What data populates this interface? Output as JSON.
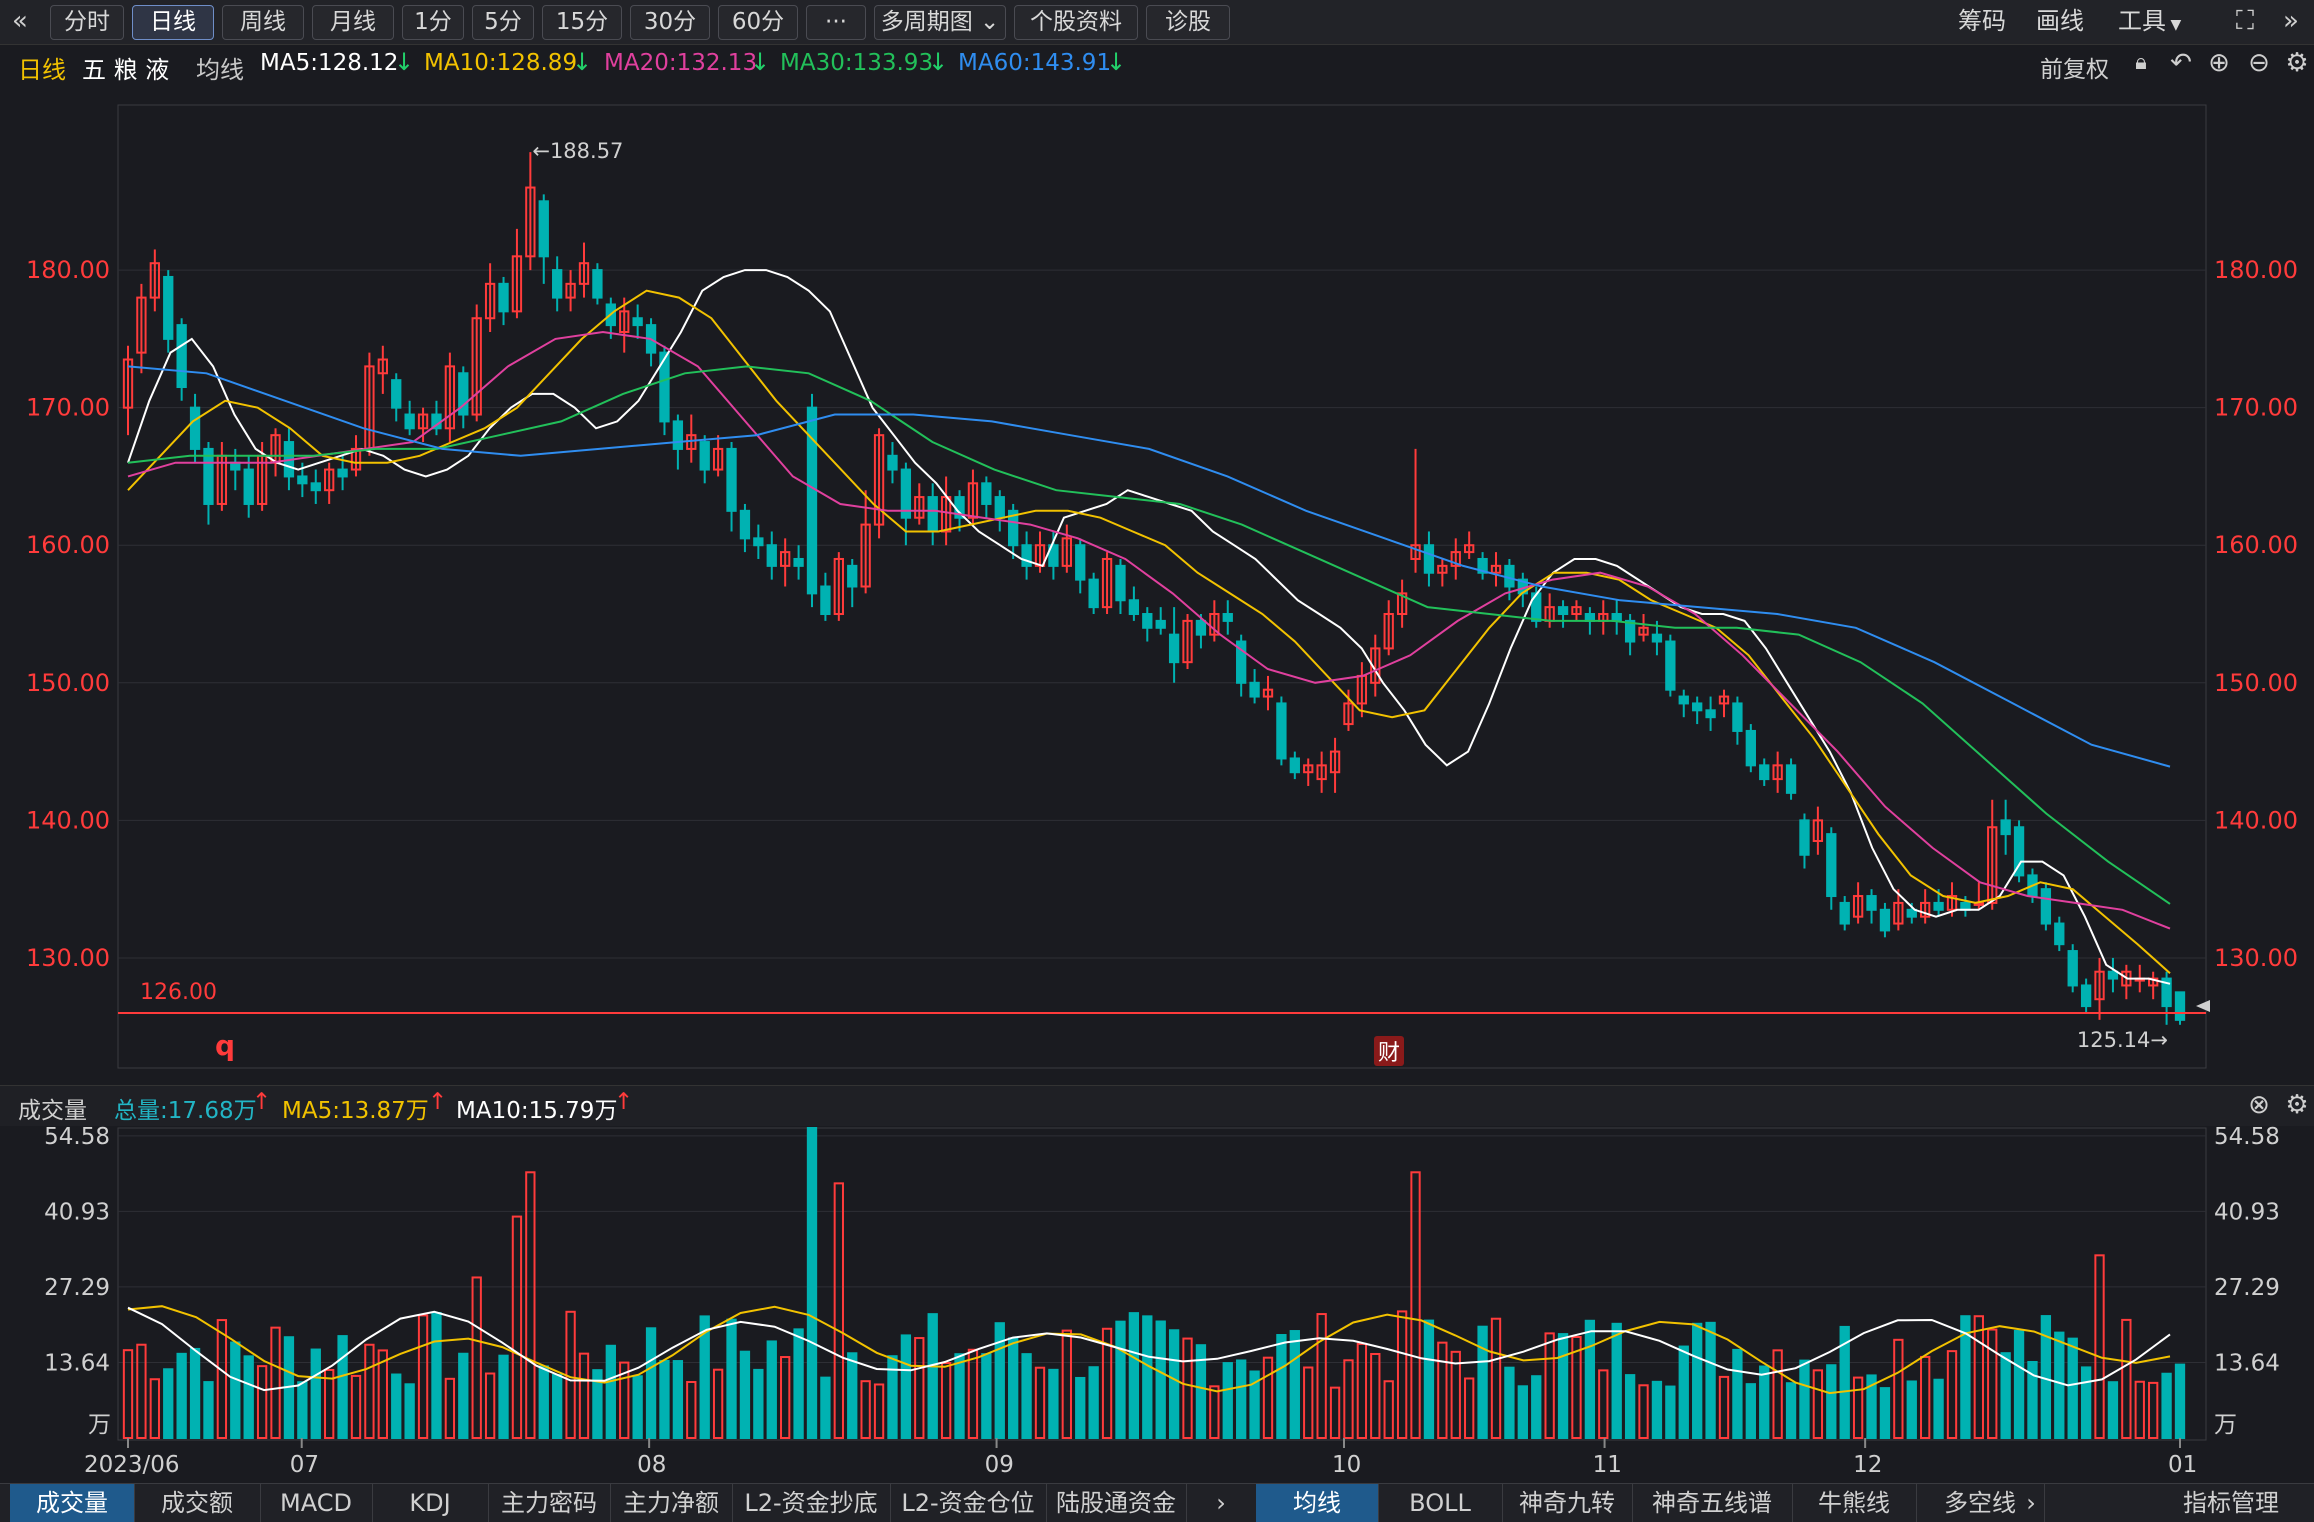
{
  "toolbar": {
    "back_icon": "double-chevron-left-icon",
    "tabs": [
      "分时",
      "日线",
      "周线",
      "月线",
      "1分",
      "5分",
      "15分",
      "30分",
      "60分",
      "···",
      "多周期图",
      "个股资料",
      "诊股"
    ],
    "active_tab": "日线",
    "right": [
      "筹码",
      "画线",
      "工具"
    ]
  },
  "info": {
    "period": "日线",
    "stock_name": "五 粮 液",
    "ma_label": "均线",
    "ma5": "MA5:128.12",
    "ma10": "MA10:128.89",
    "ma20": "MA20:132.13",
    "ma30": "MA30:133.93",
    "ma60": "MA60:143.91",
    "fuquan": "前复权"
  },
  "price_chart": {
    "y_ticks": [
      "180.00",
      "170.00",
      "160.00",
      "150.00",
      "140.00",
      "130.00"
    ],
    "high_label": "←188.57",
    "low_label": "125.14→",
    "hline_label": "126.00",
    "marker_q": "q",
    "marker_cai": "财"
  },
  "volume": {
    "title": "成交量",
    "total": "总量:17.68万",
    "ma5": "MA5:13.87万",
    "ma10": "MA10:15.79万",
    "y_ticks": [
      "54.58",
      "40.93",
      "27.29",
      "13.64"
    ],
    "unit": "万",
    "x_labels": [
      "2023/06",
      "07",
      "08",
      "09",
      "10",
      "11",
      "12",
      "01"
    ]
  },
  "bottom_tabs": [
    "成交量",
    "成交额",
    "MACD",
    "KDJ",
    "主力密码",
    "主力净额",
    "L2-资金抄底",
    "L2-资金仓位",
    "陆股通资金"
  ],
  "bottom_tabs_right": [
    "均线",
    "BOLL",
    "神奇九转",
    "神奇五线谱",
    "牛熊线",
    "多空线"
  ],
  "bottom_right_label": "指标管理",
  "colors": {
    "up": "#ff3b3b",
    "down": "#00b2b2",
    "ma5": "#ffffff",
    "ma10": "#f2c200",
    "ma20": "#e0409e",
    "ma30": "#22c05a",
    "ma60": "#2f8df0",
    "bg": "#1a1b20"
  },
  "chart_data": {
    "type": "candlestick",
    "title": "五粮液 日线",
    "x_label_months": [
      "2023/06",
      "07",
      "08",
      "09",
      "10",
      "11",
      "12",
      "01"
    ],
    "ylim": [
      122,
      192
    ],
    "high": 188.57,
    "low": 125.14,
    "support_line": 126.0,
    "candles": [
      [
        170.0,
        173.5,
        174.5,
        168.0
      ],
      [
        174.0,
        178.0,
        179.0,
        172.5
      ],
      [
        178.0,
        180.5,
        181.5,
        177.0
      ],
      [
        179.5,
        175.0,
        180.0,
        174.0
      ],
      [
        176.0,
        171.5,
        176.5,
        170.5
      ],
      [
        170.0,
        167.0,
        171.0,
        166.0
      ],
      [
        167.0,
        163.0,
        167.5,
        161.5
      ],
      [
        163.0,
        166.5,
        167.5,
        162.5
      ],
      [
        166.0,
        165.5,
        167.0,
        164.0
      ],
      [
        165.5,
        163.0,
        166.5,
        162.0
      ],
      [
        163.0,
        166.5,
        167.5,
        162.5
      ],
      [
        166.0,
        168.0,
        168.5,
        165.0
      ],
      [
        167.5,
        165.0,
        168.5,
        164.0
      ],
      [
        165.0,
        164.5,
        166.0,
        163.5
      ],
      [
        164.5,
        164.0,
        165.5,
        163.0
      ],
      [
        164.0,
        165.5,
        166.0,
        163.0
      ],
      [
        165.5,
        165.0,
        166.5,
        164.0
      ],
      [
        165.5,
        167.0,
        168.0,
        165.0
      ],
      [
        167.0,
        173.0,
        174.0,
        166.5
      ],
      [
        172.5,
        173.5,
        174.5,
        171.0
      ],
      [
        172.0,
        170.0,
        172.5,
        169.0
      ],
      [
        169.5,
        168.5,
        170.5,
        168.0
      ],
      [
        168.5,
        169.5,
        170.0,
        167.5
      ],
      [
        169.5,
        168.5,
        170.5,
        168.0
      ],
      [
        168.5,
        173.0,
        174.0,
        167.5
      ],
      [
        172.5,
        169.5,
        173.0,
        168.5
      ],
      [
        169.5,
        176.5,
        177.5,
        169.0
      ],
      [
        176.5,
        179.0,
        180.5,
        175.5
      ],
      [
        179.0,
        177.0,
        179.5,
        176.0
      ],
      [
        177.0,
        181.0,
        183.0,
        176.5
      ],
      [
        181.0,
        186.0,
        188.57,
        180.0
      ],
      [
        185.0,
        181.0,
        185.5,
        179.0
      ],
      [
        180.0,
        178.0,
        181.0,
        177.0
      ],
      [
        178.0,
        179.0,
        180.0,
        177.0
      ],
      [
        179.0,
        180.5,
        182.0,
        178.0
      ],
      [
        180.0,
        178.0,
        180.5,
        177.5
      ],
      [
        177.5,
        176.0,
        178.0,
        175.0
      ],
      [
        175.5,
        177.0,
        178.0,
        174.0
      ],
      [
        176.5,
        176.0,
        177.5,
        175.0
      ],
      [
        176.0,
        174.0,
        176.5,
        173.0
      ],
      [
        174.0,
        169.0,
        174.5,
        168.0
      ],
      [
        169.0,
        167.0,
        169.5,
        165.5
      ],
      [
        167.0,
        168.0,
        169.5,
        166.0
      ],
      [
        167.5,
        165.5,
        168.0,
        164.5
      ],
      [
        165.5,
        167.0,
        168.0,
        165.0
      ],
      [
        167.0,
        162.5,
        167.5,
        161.0
      ],
      [
        162.5,
        160.5,
        163.0,
        159.5
      ],
      [
        160.5,
        160.0,
        161.5,
        159.0
      ],
      [
        160.0,
        158.5,
        161.0,
        157.5
      ],
      [
        158.5,
        159.5,
        160.5,
        157.0
      ],
      [
        159.0,
        158.5,
        160.0,
        157.5
      ],
      [
        170.0,
        156.5,
        171.0,
        155.5
      ],
      [
        157.0,
        155.0,
        158.0,
        154.5
      ],
      [
        155.0,
        159.0,
        159.5,
        154.5
      ],
      [
        158.5,
        157.0,
        159.0,
        155.5
      ],
      [
        157.0,
        161.5,
        164.0,
        156.5
      ],
      [
        161.5,
        168.0,
        168.5,
        160.5
      ],
      [
        166.5,
        165.5,
        167.5,
        164.5
      ],
      [
        165.5,
        162.0,
        166.0,
        160.0
      ],
      [
        162.0,
        163.5,
        164.5,
        161.5
      ],
      [
        163.5,
        161.0,
        164.5,
        160.0
      ],
      [
        161.0,
        163.5,
        165.0,
        160.0
      ],
      [
        163.5,
        162.0,
        164.0,
        161.0
      ],
      [
        162.0,
        164.5,
        165.5,
        161.5
      ],
      [
        164.5,
        163.0,
        165.0,
        162.0
      ],
      [
        163.5,
        162.0,
        164.0,
        161.0
      ],
      [
        162.5,
        160.0,
        163.0,
        159.0
      ],
      [
        160.0,
        158.5,
        161.0,
        157.5
      ],
      [
        158.5,
        160.0,
        161.0,
        158.0
      ],
      [
        160.0,
        158.5,
        161.0,
        157.5
      ],
      [
        158.5,
        160.5,
        161.5,
        158.0
      ],
      [
        160.0,
        157.5,
        160.5,
        156.5
      ],
      [
        157.5,
        155.5,
        158.0,
        155.0
      ],
      [
        155.5,
        159.0,
        159.5,
        155.0
      ],
      [
        158.5,
        156.0,
        159.0,
        155.0
      ],
      [
        156.0,
        155.0,
        157.0,
        154.5
      ],
      [
        155.0,
        154.0,
        155.5,
        153.0
      ],
      [
        154.5,
        154.0,
        155.5,
        153.5
      ],
      [
        153.5,
        151.5,
        155.5,
        150.0
      ],
      [
        151.5,
        154.5,
        155.0,
        151.0
      ],
      [
        154.5,
        153.5,
        155.0,
        152.5
      ],
      [
        153.5,
        155.0,
        156.0,
        153.0
      ],
      [
        155.0,
        154.5,
        156.0,
        153.5
      ],
      [
        153.0,
        150.0,
        153.5,
        149.0
      ],
      [
        150.0,
        149.0,
        151.0,
        148.5
      ],
      [
        149.0,
        149.5,
        150.5,
        148.0
      ],
      [
        148.5,
        144.5,
        149.0,
        144.0
      ],
      [
        144.5,
        143.5,
        145.0,
        143.0
      ],
      [
        143.5,
        144.0,
        144.5,
        142.5
      ],
      [
        143.0,
        144.0,
        145.0,
        142.0
      ],
      [
        143.5,
        145.0,
        146.0,
        142.0
      ],
      [
        147.0,
        148.5,
        149.5,
        146.5
      ],
      [
        148.5,
        150.5,
        151.5,
        147.5
      ],
      [
        150.0,
        152.5,
        153.5,
        149.0
      ],
      [
        152.5,
        155.0,
        156.0,
        152.0
      ],
      [
        155.0,
        156.5,
        157.5,
        154.0
      ],
      [
        159.0,
        160.0,
        167.0,
        158.0
      ],
      [
        160.0,
        158.0,
        161.0,
        157.0
      ],
      [
        158.0,
        158.5,
        159.0,
        157.0
      ],
      [
        158.5,
        159.5,
        160.5,
        157.5
      ],
      [
        159.5,
        160.0,
        161.0,
        159.0
      ],
      [
        159.0,
        158.0,
        159.5,
        157.5
      ],
      [
        158.0,
        158.5,
        159.5,
        157.0
      ],
      [
        158.5,
        157.0,
        159.0,
        156.0
      ],
      [
        157.5,
        156.5,
        158.0,
        155.5
      ],
      [
        156.5,
        154.5,
        157.0,
        154.0
      ],
      [
        154.5,
        155.5,
        156.5,
        154.0
      ],
      [
        155.5,
        155.0,
        156.0,
        154.0
      ],
      [
        155.0,
        155.5,
        156.0,
        154.5
      ],
      [
        155.0,
        154.5,
        155.5,
        153.5
      ],
      [
        154.5,
        155.0,
        156.0,
        153.5
      ],
      [
        155.0,
        154.5,
        156.0,
        153.5
      ],
      [
        154.5,
        153.0,
        155.0,
        152.0
      ],
      [
        153.5,
        154.0,
        155.0,
        153.0
      ],
      [
        153.5,
        153.0,
        154.5,
        152.0
      ],
      [
        153.0,
        149.5,
        153.5,
        149.0
      ],
      [
        149.0,
        148.5,
        149.5,
        147.5
      ],
      [
        148.5,
        148.0,
        149.0,
        147.0
      ],
      [
        148.0,
        147.5,
        149.0,
        146.5
      ],
      [
        148.5,
        149.0,
        149.5,
        147.5
      ],
      [
        148.5,
        146.5,
        149.0,
        145.5
      ],
      [
        146.5,
        144.0,
        147.0,
        143.5
      ],
      [
        144.0,
        143.0,
        144.5,
        142.5
      ],
      [
        143.0,
        144.0,
        145.0,
        142.0
      ],
      [
        144.0,
        142.0,
        144.5,
        141.5
      ],
      [
        140.0,
        137.5,
        140.5,
        136.5
      ],
      [
        138.5,
        140.0,
        141.0,
        137.5
      ],
      [
        139.0,
        134.5,
        139.5,
        133.5
      ],
      [
        134.0,
        132.5,
        134.5,
        132.0
      ],
      [
        133.0,
        134.5,
        135.5,
        132.5
      ],
      [
        134.5,
        133.5,
        135.0,
        132.5
      ],
      [
        133.5,
        132.0,
        134.0,
        131.5
      ],
      [
        132.5,
        134.0,
        135.0,
        132.0
      ],
      [
        133.5,
        133.0,
        134.0,
        132.5
      ],
      [
        133.0,
        134.0,
        135.0,
        132.5
      ],
      [
        134.0,
        133.5,
        135.0,
        133.0
      ],
      [
        133.5,
        134.5,
        135.5,
        133.0
      ],
      [
        134.0,
        133.5,
        134.5,
        133.0
      ],
      [
        134.0,
        134.0,
        135.5,
        133.5
      ],
      [
        134.0,
        139.5,
        141.5,
        133.5
      ],
      [
        140.0,
        139.0,
        141.5,
        137.5
      ],
      [
        139.5,
        136.0,
        140.0,
        135.5
      ],
      [
        136.0,
        134.5,
        136.5,
        134.0
      ],
      [
        135.0,
        132.5,
        135.5,
        132.0
      ],
      [
        132.5,
        131.0,
        133.0,
        130.5
      ],
      [
        130.5,
        128.0,
        131.0,
        127.5
      ],
      [
        128.0,
        126.5,
        128.5,
        126.0
      ],
      [
        127.0,
        129.0,
        130.0,
        125.5
      ],
      [
        129.0,
        128.5,
        130.0,
        127.5
      ],
      [
        128.0,
        129.0,
        129.5,
        127.0
      ],
      [
        128.5,
        128.5,
        129.5,
        127.5
      ],
      [
        128.0,
        128.5,
        129.0,
        127.0
      ],
      [
        128.5,
        126.5,
        129.0,
        125.14
      ],
      [
        127.5,
        125.5,
        127.5,
        125.14
      ]
    ],
    "ma_series": [
      {
        "name": "MA5",
        "values": [
          166,
          170.5,
          174.0,
          175.0,
          173.0,
          169.5,
          167.0,
          166.0,
          165.5,
          166.0,
          166.5,
          167.0,
          166.5,
          165.5,
          165.0,
          165.5,
          166.5,
          168.5,
          170.0,
          171.0,
          171.0,
          170.0,
          168.5,
          169.0,
          170.5,
          173.0,
          175.5,
          178.5,
          179.5,
          180.0,
          180.0,
          179.5,
          178.5,
          177.0,
          173.5,
          170.0,
          168.0,
          166.0,
          164.5,
          162.5,
          161.0,
          160.0,
          159.0,
          158.5,
          162.0,
          162.5,
          163.0,
          164.0,
          163.5,
          163.0,
          162.5,
          161.0,
          160.0,
          159.0,
          157.5,
          156.0,
          155.0,
          154.0,
          152.5,
          150.0,
          148.0,
          145.5,
          144.0,
          145.0,
          148.5,
          152.5,
          156.0,
          158.0,
          159.0,
          159.0,
          158.5,
          157.5,
          156.5,
          155.5,
          155.0,
          155.0,
          154.5,
          152.5,
          150.0,
          147.5,
          145.0,
          142.0,
          138.0,
          135.0,
          133.5,
          133.0,
          133.5,
          133.5,
          134.5,
          137.0,
          137.0,
          136.0,
          133.0,
          129.5,
          128.5,
          128.5,
          128.12
        ]
      },
      {
        "name": "MA10",
        "values": [
          164,
          166.5,
          169.0,
          170.5,
          170.0,
          168.5,
          166.5,
          166.0,
          166.0,
          166.5,
          167.5,
          168.5,
          170.0,
          172.5,
          175.0,
          177.0,
          178.5,
          178.0,
          176.5,
          173.5,
          170.5,
          168.0,
          165.5,
          163.0,
          161.0,
          161.0,
          161.5,
          162.0,
          162.5,
          162.5,
          162.0,
          161.0,
          160.0,
          158.0,
          156.5,
          155.0,
          153.0,
          150.5,
          148.0,
          147.5,
          148.0,
          151.0,
          154.0,
          156.5,
          158.0,
          158.0,
          157.5,
          156.0,
          155.0,
          154.0,
          152.0,
          149.0,
          146.0,
          142.5,
          139.0,
          136.0,
          134.5,
          134.0,
          134.5,
          135.5,
          135.0,
          133.0,
          131.0,
          128.89
        ]
      },
      {
        "name": "MA20",
        "values": [
          165,
          166.0,
          166.0,
          166.0,
          166.5,
          167.0,
          167.5,
          170.0,
          173.0,
          175.0,
          175.5,
          175.0,
          173.0,
          169.0,
          165.0,
          163.0,
          162.5,
          162.5,
          162.0,
          161.5,
          160.5,
          159.0,
          156.5,
          153.5,
          151.0,
          150.0,
          150.5,
          152.0,
          154.5,
          156.5,
          157.5,
          158.0,
          157.0,
          155.0,
          152.0,
          148.5,
          145.0,
          141.0,
          138.0,
          135.5,
          134.5,
          134.0,
          133.5,
          132.13
        ]
      },
      {
        "name": "MA30",
        "values": [
          166,
          166.5,
          166.5,
          166.5,
          167.0,
          167.0,
          168.0,
          169.0,
          171.0,
          172.5,
          173.0,
          172.5,
          170.5,
          167.5,
          165.5,
          164.0,
          163.5,
          163.0,
          161.5,
          159.5,
          157.5,
          155.5,
          155.0,
          154.5,
          154.5,
          154.0,
          154.0,
          153.5,
          151.5,
          148.5,
          144.5,
          140.5,
          137.0,
          133.93
        ]
      },
      {
        "name": "MA60",
        "values": [
          173,
          172.5,
          170.5,
          168.5,
          167.0,
          166.5,
          167.0,
          167.5,
          168.0,
          169.5,
          169.5,
          169.0,
          168.0,
          167.0,
          165.0,
          162.5,
          160.5,
          158.5,
          157.0,
          156.0,
          155.5,
          155.0,
          154.0,
          151.5,
          148.5,
          145.5,
          143.91
        ]
      }
    ],
    "volume_series": [
      {
        "name": "volume",
        "ylim": [
          0,
          56
        ]
      },
      {
        "name": "MA5",
        "value": 13.87
      },
      {
        "name": "MA10",
        "value": 15.79
      }
    ]
  }
}
